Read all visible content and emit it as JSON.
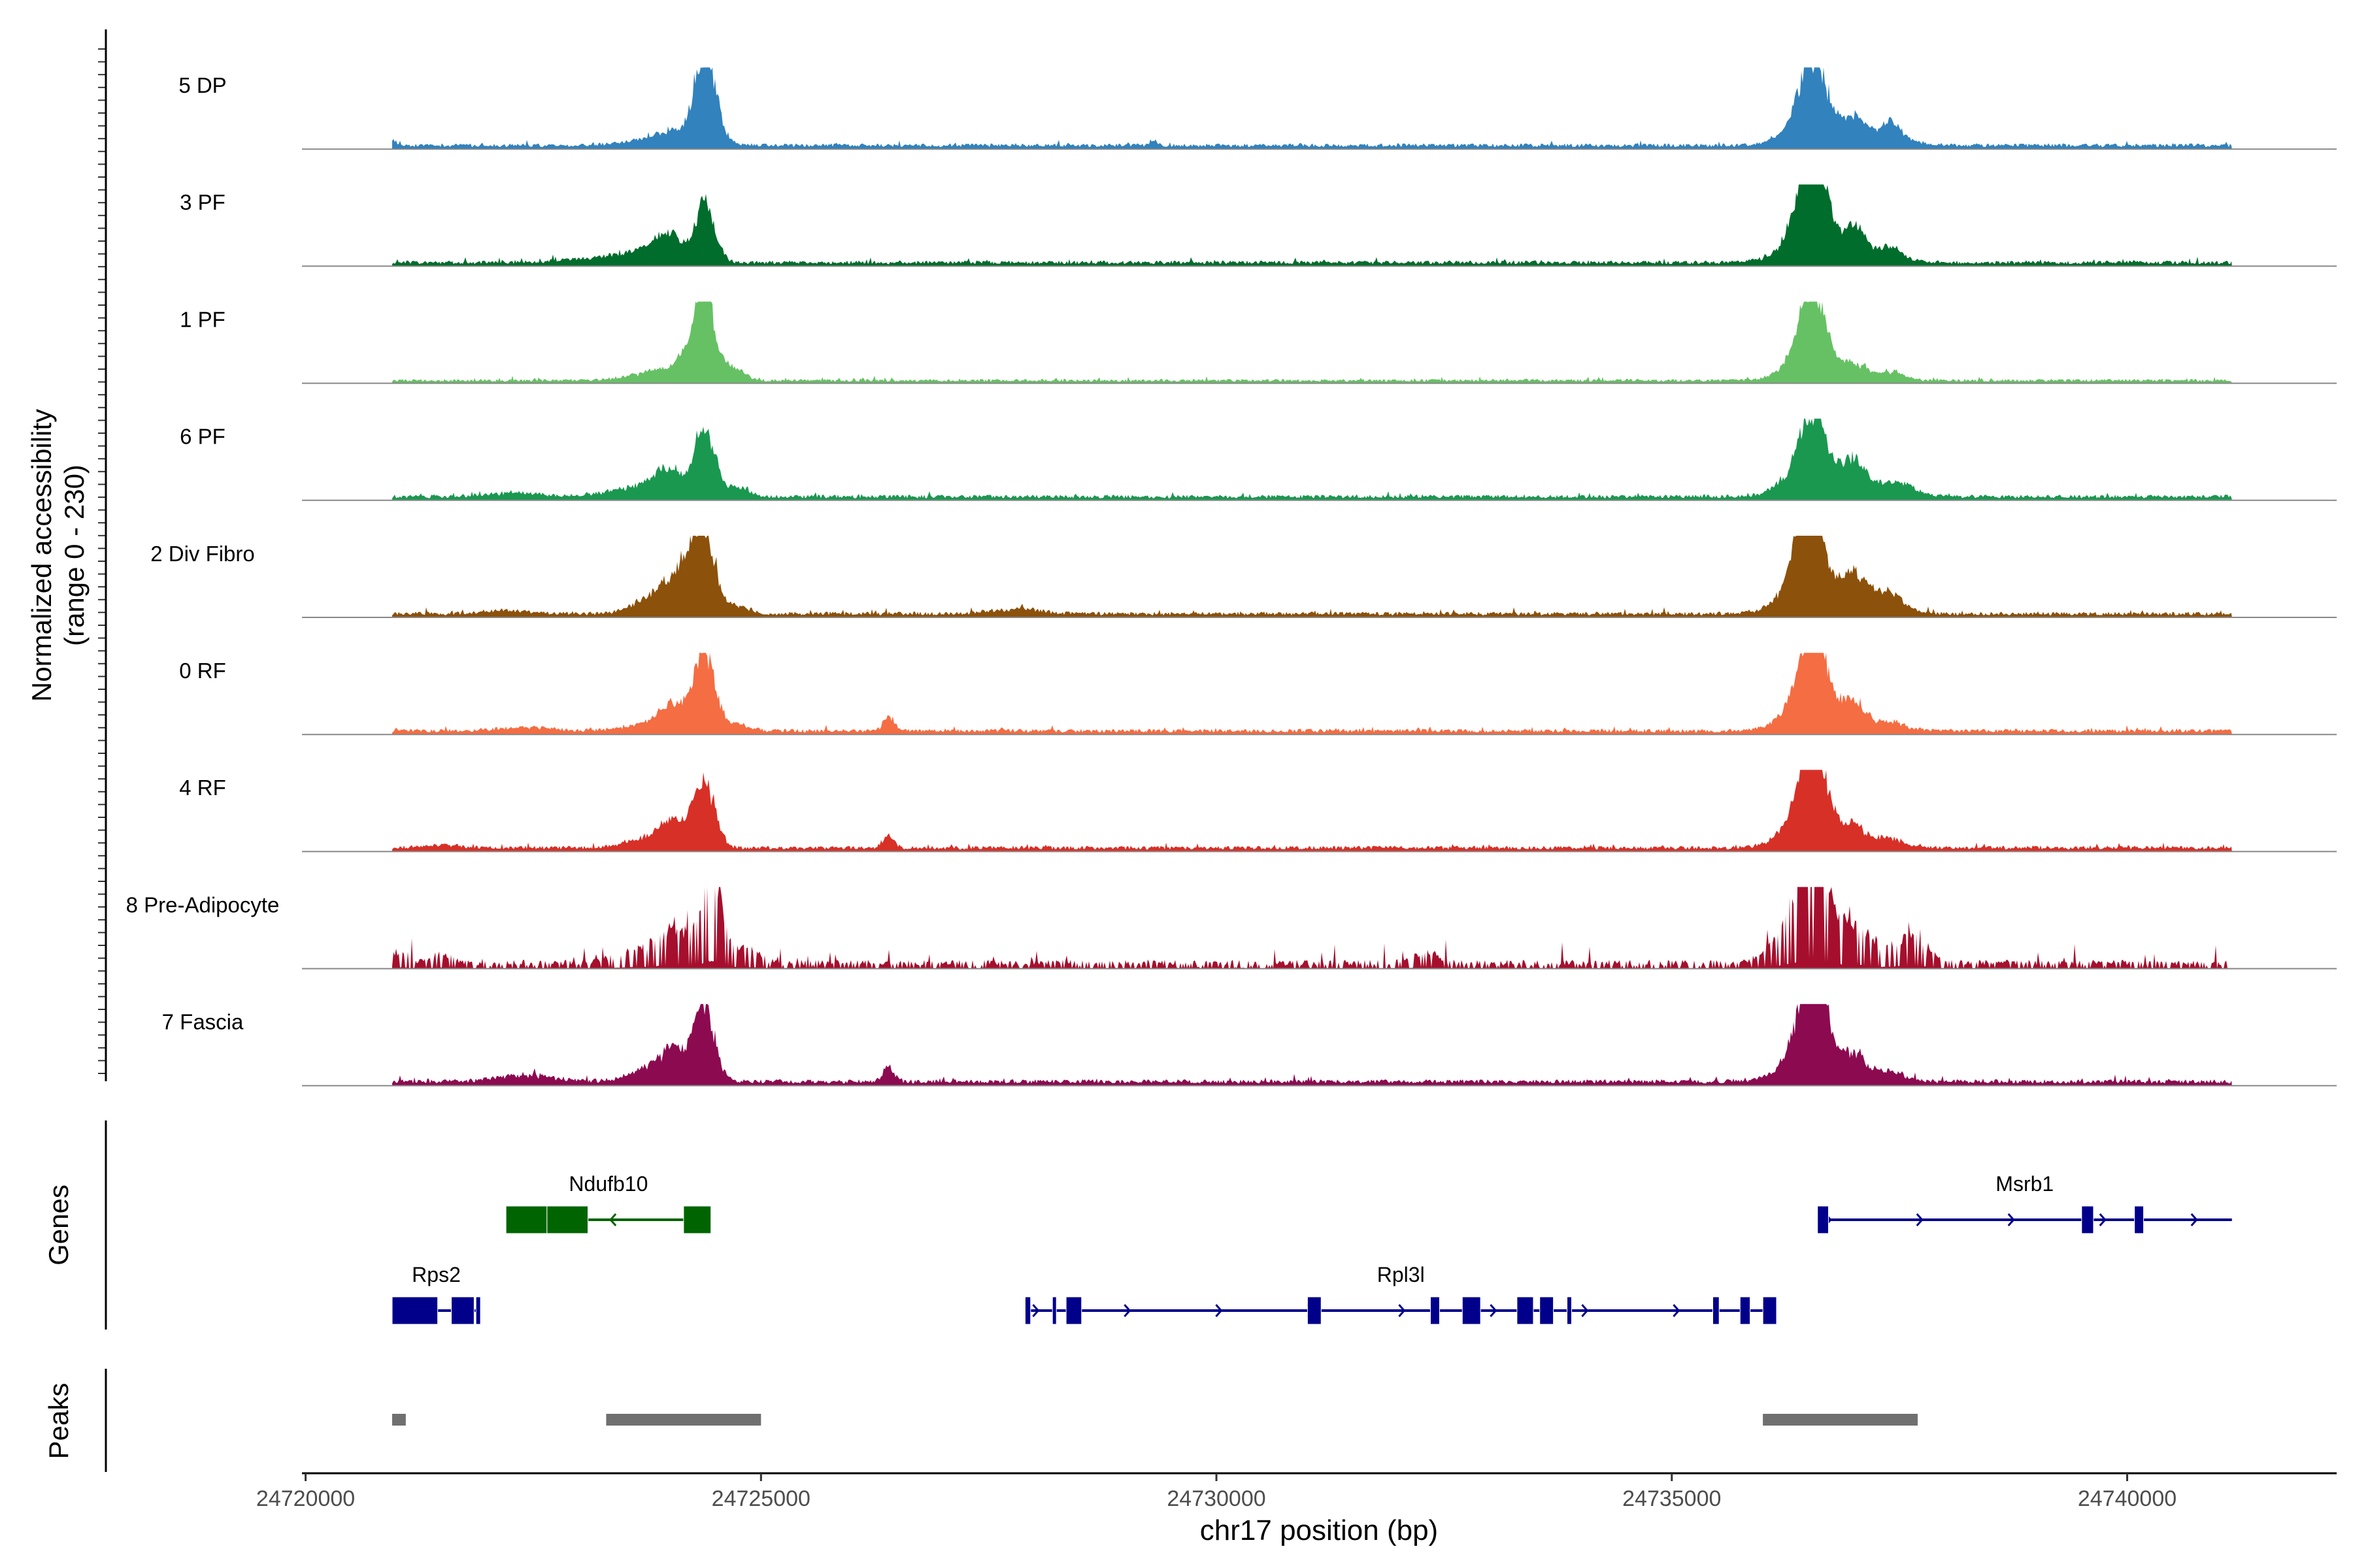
{
  "chart_data": {
    "type": "area",
    "title": "",
    "xlabel": "chr17 position (bp)",
    "ylabel_line1": "Normalized accessibility",
    "ylabel_line2": "(range 0 - 230)",
    "ylim": [
      0,
      230
    ],
    "xlim": [
      24719960,
      24742300
    ],
    "x_ticks": [
      24720000,
      24725000,
      24730000,
      24735000,
      24740000
    ],
    "x_tick_labels": [
      "24720000",
      "24725000",
      "24730000",
      "24735000",
      "24740000"
    ],
    "track_range": [
      24720950,
      24741150
    ],
    "tracks": [
      {
        "name": "5 DP",
        "color": "#3182bd",
        "baseline": 16,
        "noise": 5,
        "dip": 0,
        "peaks": [
          [
            24724400,
            120,
            230
          ],
          [
            24724350,
            80,
            60
          ],
          [
            24724050,
            200,
            35
          ],
          [
            24723700,
            300,
            12
          ],
          [
            24720950,
            40,
            18
          ],
          [
            24729300,
            40,
            15
          ],
          [
            24736550,
            150,
            200
          ],
          [
            24736500,
            260,
            60
          ],
          [
            24737000,
            120,
            65
          ],
          [
            24737400,
            120,
            50
          ],
          [
            24737250,
            350,
            20
          ]
        ]
      },
      {
        "name": "3 PF",
        "color": "#006d2c",
        "baseline": 16,
        "noise": 6,
        "dip": 0,
        "peaks": [
          [
            24724400,
            110,
            130
          ],
          [
            24724350,
            70,
            50
          ],
          [
            24724000,
            150,
            65
          ],
          [
            24723800,
            250,
            30
          ],
          [
            24723300,
            400,
            15
          ],
          [
            24736550,
            140,
            280
          ],
          [
            24736450,
            250,
            80
          ],
          [
            24737000,
            110,
            85
          ],
          [
            24737400,
            120,
            35
          ],
          [
            24737100,
            300,
            25
          ]
        ]
      },
      {
        "name": "1 PF",
        "color": "#66c164",
        "baseline": 12,
        "noise": 5,
        "dip": 0,
        "peaks": [
          [
            24724400,
            110,
            200
          ],
          [
            24724350,
            70,
            70
          ],
          [
            24724200,
            120,
            65
          ],
          [
            24724700,
            120,
            35
          ],
          [
            24723900,
            300,
            30
          ],
          [
            24736550,
            140,
            210
          ],
          [
            24736480,
            230,
            70
          ],
          [
            24737000,
            140,
            45
          ],
          [
            24737400,
            150,
            25
          ]
        ]
      },
      {
        "name": "6 PF",
        "color": "#1a9850",
        "baseline": 16,
        "noise": 6,
        "dip": 0,
        "peaks": [
          [
            24724400,
            110,
            170
          ],
          [
            24724350,
            70,
            60
          ],
          [
            24724000,
            150,
            70
          ],
          [
            24724750,
            120,
            25
          ],
          [
            24723700,
            350,
            30
          ],
          [
            24722300,
            300,
            12
          ],
          [
            24736550,
            140,
            200
          ],
          [
            24736480,
            260,
            70
          ],
          [
            24737000,
            130,
            95
          ],
          [
            24737500,
            150,
            30
          ],
          [
            24737250,
            300,
            20
          ]
        ]
      },
      {
        "name": "2 Div Fibro",
        "color": "#8c510a",
        "baseline": 16,
        "noise": 7,
        "dip": 0,
        "peaks": [
          [
            24724400,
            110,
            190
          ],
          [
            24724250,
            130,
            120
          ],
          [
            24724050,
            150,
            75
          ],
          [
            24723800,
            200,
            45
          ],
          [
            24724750,
            120,
            25
          ],
          [
            24722200,
            250,
            10
          ],
          [
            24727800,
            250,
            15
          ],
          [
            24736500,
            140,
            280
          ],
          [
            24736480,
            260,
            90
          ],
          [
            24737000,
            140,
            95
          ],
          [
            24737400,
            140,
            45
          ],
          [
            24737150,
            300,
            25
          ]
        ]
      },
      {
        "name": "0 RF",
        "color": "#f46d43",
        "baseline": 16,
        "noise": 6,
        "dip": 0,
        "peaks": [
          [
            24724400,
            110,
            200
          ],
          [
            24724300,
            80,
            60
          ],
          [
            24724050,
            140,
            70
          ],
          [
            24723800,
            250,
            25
          ],
          [
            24724750,
            120,
            20
          ],
          [
            24722400,
            300,
            10
          ],
          [
            24726400,
            60,
            40
          ],
          [
            24736550,
            140,
            260
          ],
          [
            24736480,
            250,
            80
          ],
          [
            24737000,
            130,
            85
          ],
          [
            24737400,
            150,
            30
          ]
        ]
      },
      {
        "name": "4 RF",
        "color": "#d73027",
        "baseline": 16,
        "noise": 6,
        "dip": 0,
        "peaks": [
          [
            24724400,
            110,
            170
          ],
          [
            24724300,
            80,
            60
          ],
          [
            24724050,
            140,
            70
          ],
          [
            24723800,
            250,
            30
          ],
          [
            24726400,
            60,
            35
          ],
          [
            24721500,
            200,
            10
          ],
          [
            24736550,
            140,
            260
          ],
          [
            24736480,
            250,
            85
          ],
          [
            24737000,
            130,
            60
          ],
          [
            24737400,
            150,
            30
          ]
        ]
      },
      {
        "name": "8 Pre-Adipocyte",
        "color": "#a50f2d",
        "baseline": 25,
        "noise": 30,
        "dip": 80,
        "peaks": [
          [
            24724400,
            110,
            160
          ],
          [
            24724500,
            90,
            150
          ],
          [
            24724050,
            160,
            90
          ],
          [
            24723700,
            250,
            40
          ],
          [
            24724800,
            160,
            45
          ],
          [
            24721000,
            120,
            35
          ],
          [
            24721500,
            100,
            30
          ],
          [
            24736550,
            140,
            270
          ],
          [
            24736480,
            250,
            100
          ],
          [
            24737000,
            180,
            110
          ],
          [
            24737600,
            200,
            80
          ],
          [
            24732300,
            150,
            30
          ],
          [
            24736300,
            100,
            40
          ],
          [
            24736100,
            120,
            25
          ]
        ]
      },
      {
        "name": "7 Fascia",
        "color": "#8c0a50",
        "baseline": 18,
        "noise": 8,
        "dip": 0,
        "peaks": [
          [
            24724400,
            110,
            180
          ],
          [
            24724300,
            80,
            70
          ],
          [
            24724050,
            140,
            80
          ],
          [
            24723800,
            250,
            40
          ],
          [
            24726400,
            60,
            45
          ],
          [
            24722400,
            300,
            20
          ],
          [
            24736550,
            140,
            280
          ],
          [
            24736480,
            250,
            90
          ],
          [
            24737000,
            140,
            70
          ],
          [
            24737400,
            150,
            30
          ]
        ]
      }
    ],
    "genes": [
      {
        "name": "Ndufb10",
        "color": "#006400",
        "strand": "-",
        "start": 24722200,
        "end": 24724450,
        "exons": [
          [
            24722200,
            24722650
          ],
          [
            24722650,
            24723100
          ],
          [
            24724150,
            24724450
          ]
        ]
      },
      {
        "name": "Msrb1",
        "color": "#00008b",
        "strand": "+",
        "start": 24736600,
        "end": 24741150,
        "exons": [
          [
            24736600,
            24736720
          ],
          [
            24739500,
            24739630
          ],
          [
            24740080,
            24740180
          ]
        ]
      },
      {
        "name": "Rps2",
        "color": "#00008b",
        "strand": "+",
        "start": 24720950,
        "end": 24721920,
        "exons": [
          [
            24720950,
            24721450
          ],
          [
            24721600,
            24721850
          ],
          [
            24721870,
            24721920
          ]
        ]
      },
      {
        "name": "Rpl3l",
        "color": "#00008b",
        "strand": "+",
        "start": 24727900,
        "end": 24736150,
        "exons": [
          [
            24727900,
            24727960
          ],
          [
            24728200,
            24728230
          ],
          [
            24728350,
            24728520
          ],
          [
            24731000,
            24731150
          ],
          [
            24732350,
            24732450
          ],
          [
            24732700,
            24732900
          ],
          [
            24733300,
            24733480
          ],
          [
            24733550,
            24733700
          ],
          [
            24733850,
            24733900
          ],
          [
            24735450,
            24735520
          ],
          [
            24735750,
            24735860
          ],
          [
            24736000,
            24736150
          ]
        ]
      }
    ],
    "peaks": [
      [
        24720950,
        24721100
      ],
      [
        24723300,
        24725000
      ],
      [
        24736000,
        24737700
      ]
    ],
    "peak_color": "#707070",
    "panel_labels": {
      "genes": "Genes",
      "peaks": "Peaks"
    }
  }
}
